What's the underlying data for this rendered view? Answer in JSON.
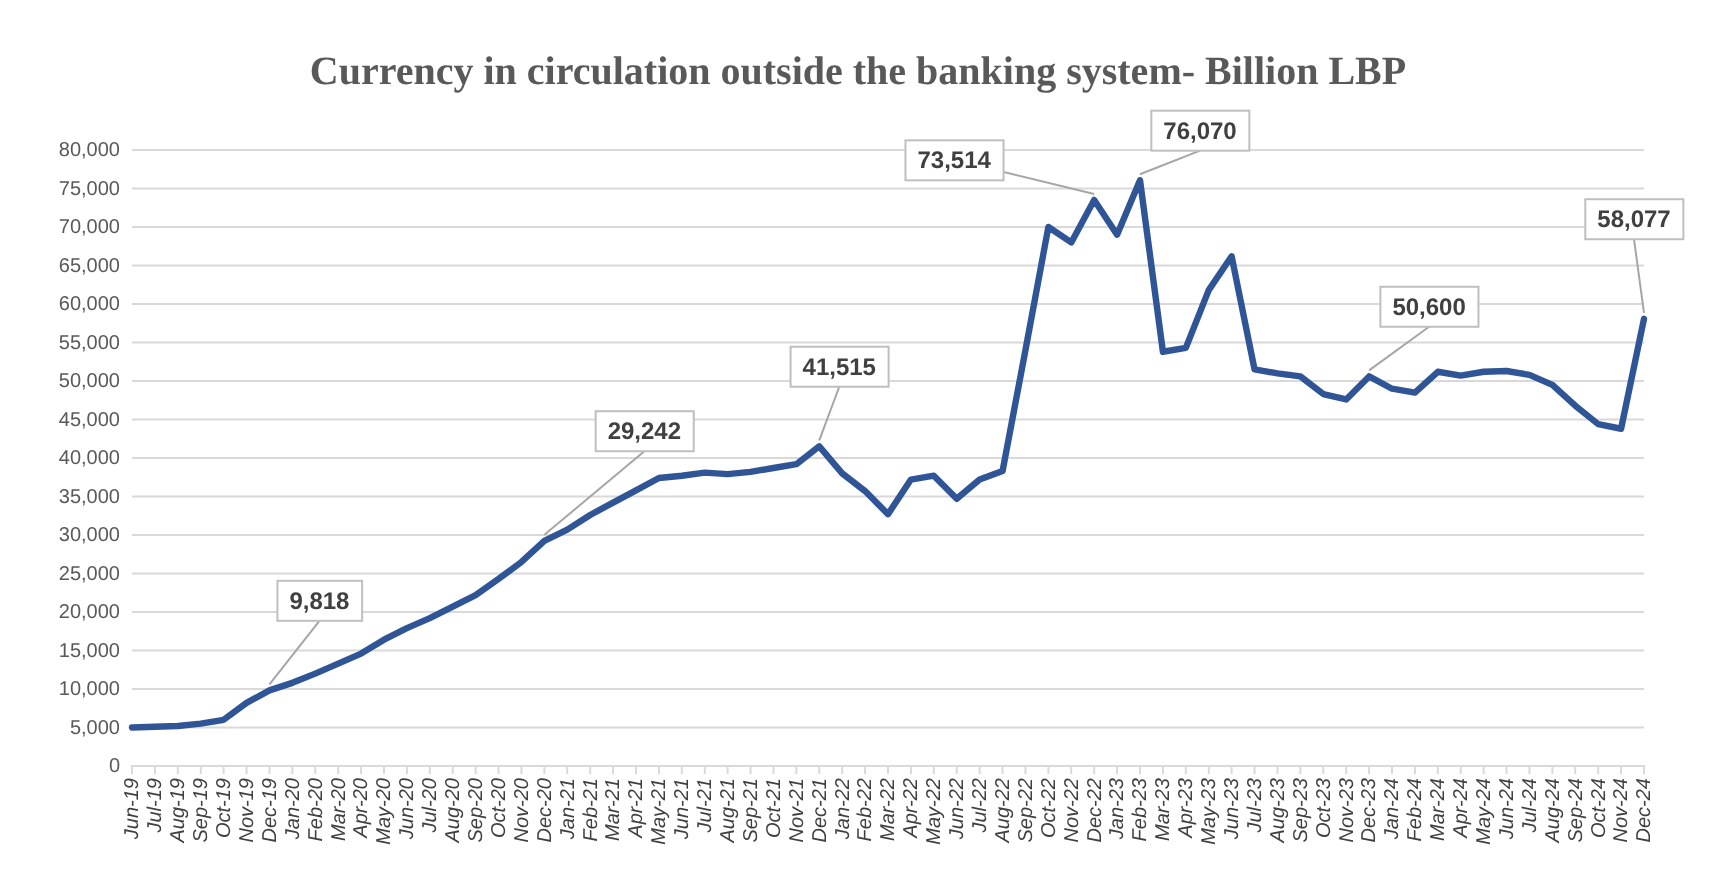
{
  "chart_data": {
    "type": "line",
    "title": "Currency in circulation outside the banking system- Billion LBP",
    "categories": [
      "Jun-19",
      "Jul-19",
      "Aug-19",
      "Sep-19",
      "Oct-19",
      "Nov-19",
      "Dec-19",
      "Jan-20",
      "Feb-20",
      "Mar-20",
      "Apr-20",
      "May-20",
      "Jun-20",
      "Jul-20",
      "Aug-20",
      "Sep-20",
      "Oct-20",
      "Nov-20",
      "Dec-20",
      "Jan-21",
      "Feb-21",
      "Mar-21",
      "Apr-21",
      "May-21",
      "Jun-21",
      "Jul-21",
      "Aug-21",
      "Sep-21",
      "Oct-21",
      "Nov-21",
      "Dec-21",
      "Jan-22",
      "Feb-22",
      "Mar-22",
      "Apr-22",
      "May-22",
      "Jun-22",
      "Jul-22",
      "Aug-22",
      "Sep-22",
      "Oct-22",
      "Nov-22",
      "Dec-22",
      "Jan-23",
      "Feb-23",
      "Mar-23",
      "Apr-23",
      "May-23",
      "Jun-23",
      "Jul-23",
      "Aug-23",
      "Sep-23",
      "Oct-23",
      "Nov-23",
      "Dec-23",
      "Jan-24",
      "Feb-24",
      "Mar-24",
      "Apr-24",
      "May-24",
      "Jun-24",
      "Jul-24",
      "Aug-24",
      "Sep-24",
      "Oct-24",
      "Nov-24",
      "Dec-24"
    ],
    "series": [
      {
        "color": "#2f5597",
        "values": [
          5000,
          5100,
          5200,
          5500,
          6000,
          8200,
          9818,
          10800,
          12000,
          13300,
          14600,
          16400,
          17900,
          19200,
          20700,
          22200,
          24300,
          26500,
          29242,
          30700,
          32600,
          34200,
          35800,
          37400,
          37700,
          38100,
          37900,
          38200,
          38700,
          39200,
          41515,
          38000,
          35700,
          32700,
          37200,
          37700,
          34700,
          37200,
          38300,
          54000,
          70000,
          68000,
          73514,
          69000,
          76070,
          53800,
          54300,
          61800,
          66200,
          51500,
          51000,
          50600,
          48300,
          47600,
          50600,
          49000,
          48500,
          51200,
          50700,
          51200,
          51300,
          50800,
          49500,
          46800,
          44400,
          43800,
          58077
        ],
        "value_labels": [
          null,
          null,
          null,
          null,
          null,
          null,
          "9,818",
          null,
          null,
          null,
          null,
          null,
          null,
          null,
          null,
          null,
          null,
          null,
          "29,242",
          null,
          null,
          null,
          null,
          null,
          null,
          null,
          null,
          null,
          null,
          null,
          "41,515",
          null,
          null,
          null,
          null,
          null,
          null,
          null,
          null,
          null,
          null,
          null,
          "73,514",
          null,
          "76,070",
          null,
          null,
          null,
          null,
          null,
          null,
          null,
          null,
          null,
          "50,600",
          null,
          null,
          null,
          null,
          null,
          null,
          null,
          null,
          null,
          null,
          null,
          "58,077"
        ]
      }
    ],
    "ylim": [
      0,
      80000
    ],
    "yticks": [
      {
        "value": 0,
        "label": "0"
      },
      {
        "value": 5000,
        "label": "5,000"
      },
      {
        "value": 10000,
        "label": "10,000"
      },
      {
        "value": 15000,
        "label": "15,000"
      },
      {
        "value": 20000,
        "label": "20,000"
      },
      {
        "value": 25000,
        "label": "25,000"
      },
      {
        "value": 30000,
        "label": "30,000"
      },
      {
        "value": 35000,
        "label": "35,000"
      },
      {
        "value": 40000,
        "label": "40,000"
      },
      {
        "value": 45000,
        "label": "45,000"
      },
      {
        "value": 50000,
        "label": "50,000"
      },
      {
        "value": 55000,
        "label": "55,000"
      },
      {
        "value": 60000,
        "label": "60,000"
      },
      {
        "value": 65000,
        "label": "65,000"
      },
      {
        "value": 70000,
        "label": "70,000"
      },
      {
        "value": 75000,
        "label": "75,000"
      },
      {
        "value": 80000,
        "label": "80,000"
      }
    ],
    "grid": "y",
    "legend": false,
    "marker": "none",
    "line_style": "solid"
  }
}
